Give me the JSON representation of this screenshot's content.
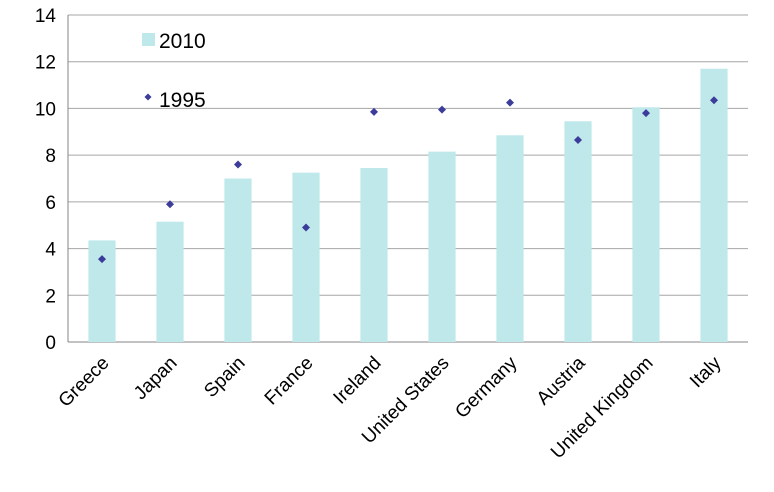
{
  "chart_data": {
    "type": "bar",
    "categories": [
      "Greece",
      "Japan",
      "Spain",
      "France",
      "Ireland",
      "United States",
      "Germany",
      "Austria",
      "United Kingdom",
      "Italy"
    ],
    "series": [
      {
        "name": "2010",
        "kind": "bar",
        "values": [
          4.35,
          5.15,
          7.0,
          7.25,
          7.45,
          8.15,
          8.85,
          9.45,
          10.05,
          11.7
        ]
      },
      {
        "name": "1995",
        "kind": "marker",
        "values": [
          3.55,
          5.9,
          7.6,
          4.9,
          9.85,
          9.95,
          10.25,
          8.65,
          9.8,
          10.35
        ]
      }
    ],
    "title": "",
    "xlabel": "",
    "ylabel": "",
    "ylim": [
      0,
      14
    ],
    "yticks": [
      "0",
      "2",
      "4",
      "6",
      "8",
      "10",
      "12",
      "14"
    ],
    "grid": true,
    "legend": "top-left",
    "colors": {
      "bar": "#bfe8ea",
      "marker": "#3c3c9a"
    }
  }
}
